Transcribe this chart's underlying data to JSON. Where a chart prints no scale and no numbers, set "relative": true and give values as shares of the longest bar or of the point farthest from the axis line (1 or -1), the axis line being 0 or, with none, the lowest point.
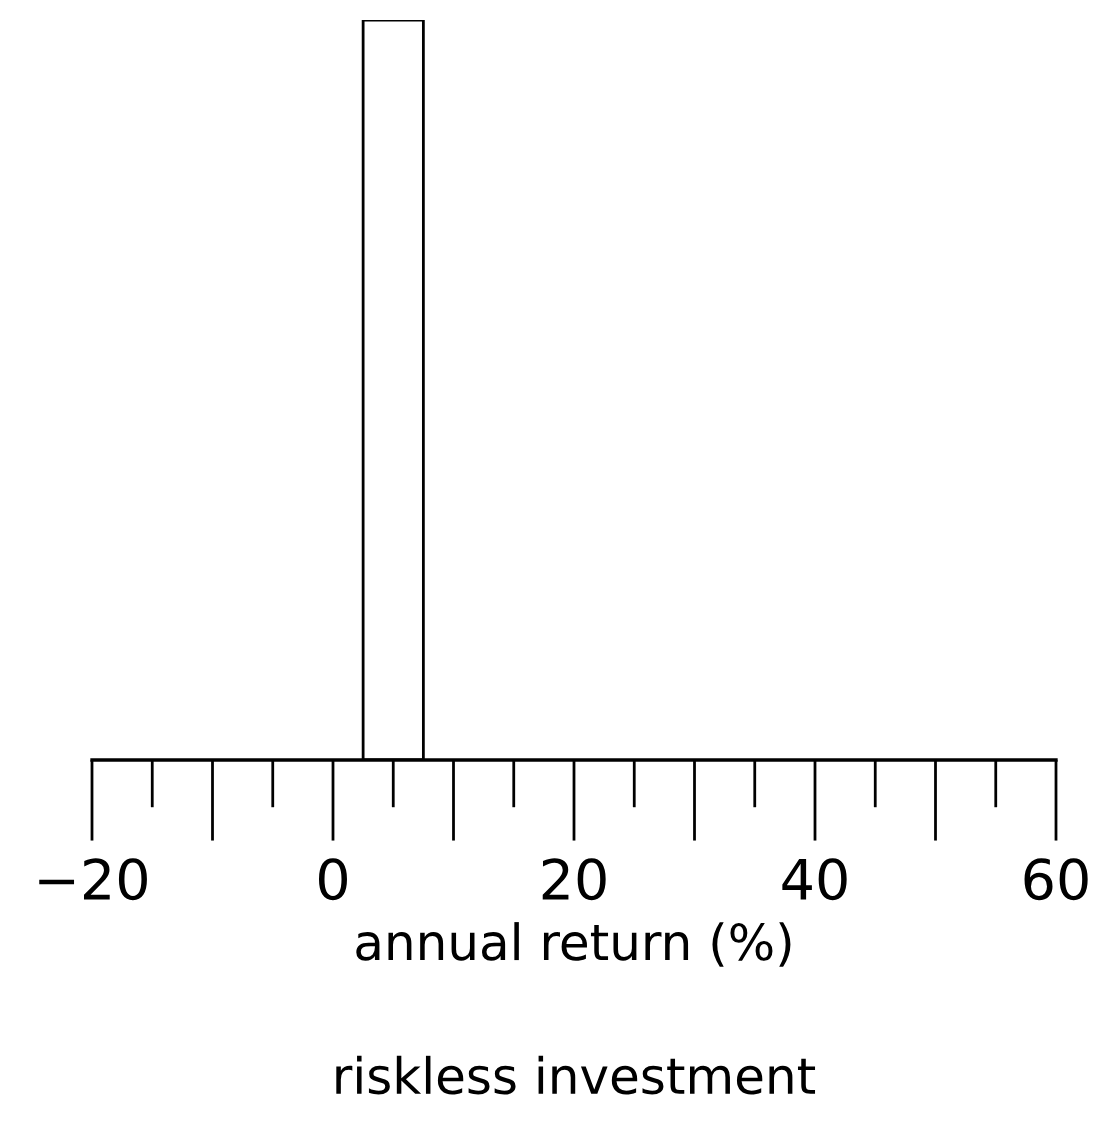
{
  "chart_data": {
    "type": "bar",
    "relative": true,
    "title": "riskless investment",
    "xlabel": "annual return (%)",
    "x": [
      5
    ],
    "values": [
      1
    ],
    "color": "#ffffff",
    "xlim": [
      -20,
      60
    ],
    "xticks": [
      {
        "value": -20,
        "label": "−20"
      },
      0,
      20,
      40,
      60
    ],
    "grid": false,
    "legend": false
  }
}
